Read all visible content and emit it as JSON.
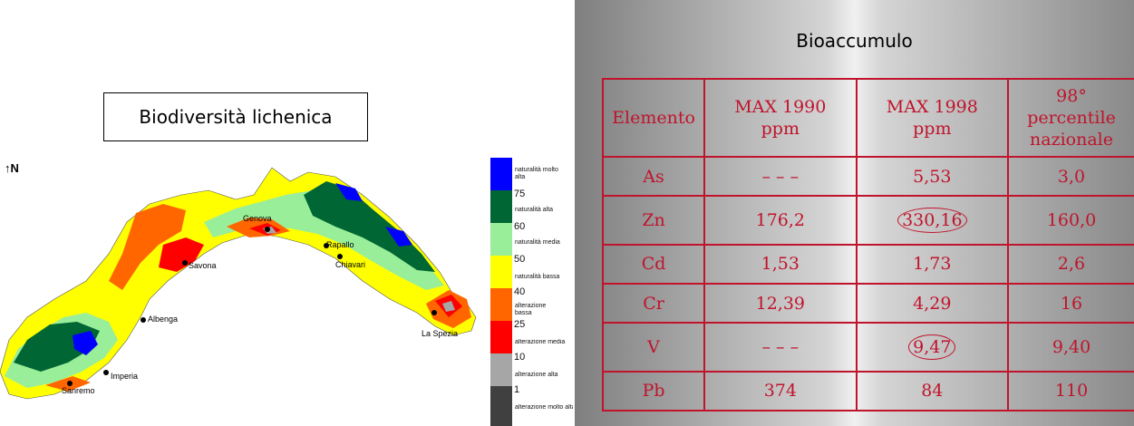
{
  "map": {
    "title": "Biodiversità lichenica",
    "north_label": "N",
    "legend": [
      {
        "label": "naturalità molto alta",
        "color": "#0000ff"
      },
      {
        "label": "naturalità alta",
        "color": "#006633"
      },
      {
        "label": "naturalità media",
        "color": "#99ee99"
      },
      {
        "label": "naturalità bassa",
        "color": "#ffff00"
      },
      {
        "label": "alterazione bassa",
        "color": "#ff6600"
      },
      {
        "label": "alterazione media",
        "color": "#ff0000"
      },
      {
        "label": "alterazione alta",
        "color": "#a6a6a6"
      },
      {
        "label": "alterazione molto alta",
        "color": "#404040"
      }
    ],
    "legend_values": [
      "75",
      "60",
      "50",
      "40",
      "25",
      "10",
      "1"
    ],
    "cities": [
      "Genova",
      "Rapallo",
      "Chiavari",
      "Savona",
      "Albenga",
      "La Spezia",
      "Imperia",
      "Sanremo"
    ]
  },
  "table": {
    "title": "Bioaccumulo",
    "headers": [
      "Elemento",
      "MAX 1990 ppm",
      "MAX 1998 ppm",
      "98° percentile nazionale"
    ],
    "rows": [
      [
        "As",
        "– – –",
        "5,53",
        "3,0"
      ],
      [
        "Zn",
        "176,2",
        "330,16",
        "160,0"
      ],
      [
        "Cd",
        "1,53",
        "1,73",
        "2,6"
      ],
      [
        "Cr",
        "12,39",
        "4,29",
        "16"
      ],
      [
        "V",
        "– – –",
        "9,47",
        "9,40"
      ],
      [
        "Pb",
        "374",
        "84",
        "110"
      ]
    ],
    "highlighted": [
      "330,16",
      "9,47"
    ],
    "accent_color": "#c0142c"
  }
}
